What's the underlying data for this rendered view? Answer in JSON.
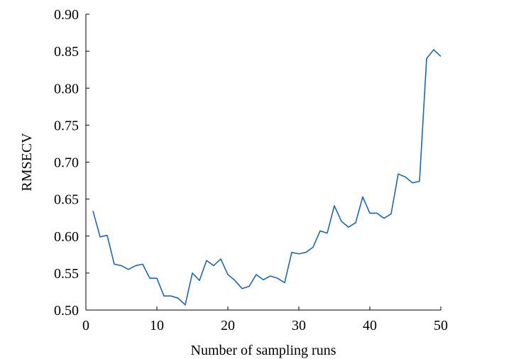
{
  "chart_data": {
    "type": "line",
    "xlabel": "Number of sampling runs",
    "ylabel": "RMSECV",
    "xlim": [
      0,
      50
    ],
    "ylim": [
      0.5,
      0.9
    ],
    "xticks": [
      0,
      10,
      20,
      30,
      40,
      50
    ],
    "xtick_labels": [
      "0",
      "10",
      "20",
      "30",
      "40",
      "50"
    ],
    "yticks": [
      0.5,
      0.55,
      0.6,
      0.65,
      0.7,
      0.75,
      0.8,
      0.85,
      0.9
    ],
    "ytick_labels": [
      "0.50",
      "0.55",
      "0.60",
      "0.65",
      "0.70",
      "0.75",
      "0.80",
      "0.85",
      "0.90"
    ],
    "grid": false,
    "legend": "none",
    "line_color": "#2166ac",
    "series": [
      {
        "x": [
          1,
          2,
          3,
          4,
          5,
          6,
          7,
          8,
          9,
          10,
          11,
          12,
          13,
          14,
          15,
          16,
          17,
          18,
          19,
          20,
          21,
          22,
          23,
          24,
          25,
          26,
          27,
          28,
          29,
          30,
          31,
          32,
          33,
          34,
          35,
          36,
          37,
          38,
          39,
          40,
          41,
          42,
          43,
          44,
          45,
          46,
          47,
          48,
          49,
          50
        ],
        "values": [
          0.634,
          0.599,
          0.601,
          0.562,
          0.56,
          0.555,
          0.56,
          0.562,
          0.543,
          0.543,
          0.519,
          0.519,
          0.516,
          0.507,
          0.55,
          0.54,
          0.567,
          0.56,
          0.569,
          0.548,
          0.54,
          0.529,
          0.532,
          0.548,
          0.541,
          0.546,
          0.543,
          0.537,
          0.578,
          0.576,
          0.578,
          0.585,
          0.607,
          0.604,
          0.641,
          0.62,
          0.612,
          0.618,
          0.653,
          0.631,
          0.631,
          0.624,
          0.63,
          0.684,
          0.68,
          0.672,
          0.674,
          0.84,
          0.852,
          0.843
        ]
      }
    ]
  }
}
